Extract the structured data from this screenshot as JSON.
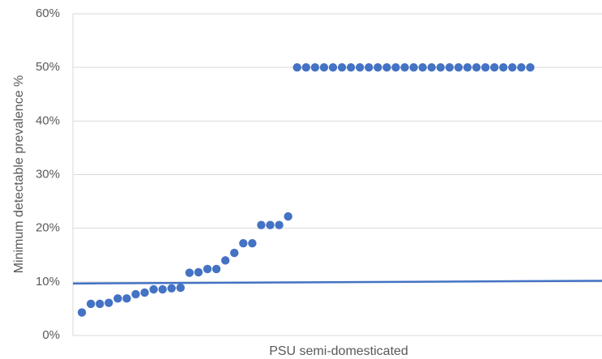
{
  "chart_data": {
    "type": "scatter",
    "y_label": "Minimum detectable prevalence %",
    "x_label": "PSU semi-domesticated",
    "categories": [
      null,
      null,
      null,
      null,
      null,
      null,
      null,
      null,
      null,
      null,
      null,
      null,
      null,
      null,
      null,
      null,
      null,
      null,
      null,
      null,
      null,
      null,
      null,
      null,
      null,
      null,
      null,
      null,
      null,
      null,
      null,
      null,
      null,
      null,
      null,
      null,
      null,
      null,
      null,
      null,
      null,
      null,
      null,
      null,
      null,
      null,
      null,
      null,
      null,
      null,
      null
    ],
    "values": [
      4.3,
      5.9,
      5.9,
      6.1,
      6.9,
      6.9,
      7.7,
      8.0,
      8.6,
      8.6,
      8.8,
      8.9,
      11.7,
      11.8,
      12.4,
      12.4,
      14.0,
      15.4,
      17.2,
      17.2,
      20.6,
      20.6,
      20.6,
      22.2,
      50,
      50,
      50,
      50,
      50,
      50,
      50,
      50,
      50,
      50,
      50,
      50,
      50,
      50,
      50,
      50,
      50,
      50,
      50,
      50,
      50,
      50,
      50,
      50,
      50,
      50,
      50
    ],
    "color": "#4472c4",
    "reference_line": [
      9.7,
      10.2
    ],
    "ylim": [
      0,
      60
    ],
    "yticks": [
      {
        "value": 0,
        "label": "0%"
      },
      {
        "value": 10,
        "label": "10%"
      },
      {
        "value": 20,
        "label": "20%"
      },
      {
        "value": 30,
        "label": "30%"
      },
      {
        "value": 40,
        "label": "40%"
      },
      {
        "value": 50,
        "label": "50%"
      },
      {
        "value": 60,
        "label": "60%"
      }
    ],
    "grid": true
  }
}
